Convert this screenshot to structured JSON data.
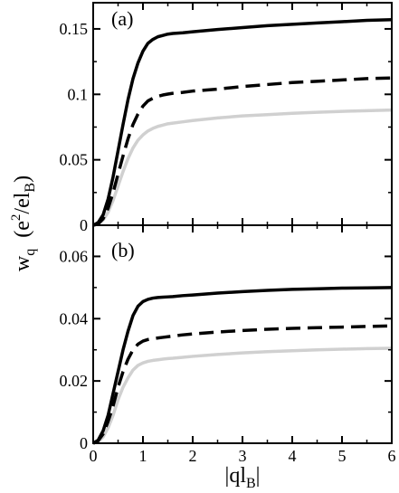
{
  "chart_data": [
    {
      "type": "line",
      "panel_label": "(a)",
      "xlim": [
        0,
        6
      ],
      "ylim": [
        0,
        0.17
      ],
      "xticks": [
        0,
        1,
        2,
        3,
        4,
        5,
        6
      ],
      "yticks": [
        0,
        0.05,
        0.1,
        0.15
      ],
      "ytick_labels": [
        "0",
        "0.05",
        "0.1",
        "0.15"
      ],
      "x": [
        0,
        0.1,
        0.2,
        0.3,
        0.4,
        0.5,
        0.6,
        0.7,
        0.8,
        0.9,
        1.0,
        1.1,
        1.2,
        1.3,
        1.4,
        1.5,
        1.6,
        1.8,
        2.0,
        2.5,
        3.0,
        3.5,
        4.0,
        4.5,
        5.0,
        5.5,
        6.0
      ],
      "series": [
        {
          "style": "solid-black",
          "color": "#000000",
          "values": [
            0,
            0.002,
            0.008,
            0.02,
            0.037,
            0.057,
            0.077,
            0.096,
            0.112,
            0.124,
            0.133,
            0.139,
            0.142,
            0.144,
            0.145,
            0.146,
            0.1465,
            0.147,
            0.1478,
            0.1495,
            0.151,
            0.1525,
            0.1535,
            0.1545,
            0.1555,
            0.1565,
            0.157
          ]
        },
        {
          "style": "dashed-black",
          "color": "#000000",
          "values": [
            0,
            0.001,
            0.005,
            0.013,
            0.025,
            0.039,
            0.053,
            0.066,
            0.077,
            0.085,
            0.091,
            0.095,
            0.097,
            0.0985,
            0.0995,
            0.1002,
            0.1008,
            0.1015,
            0.1025,
            0.104,
            0.106,
            0.1075,
            0.109,
            0.11,
            0.111,
            0.112,
            0.1125
          ]
        },
        {
          "style": "solid-gray",
          "color": "#d0d0d0",
          "values": [
            0,
            0.001,
            0.004,
            0.01,
            0.019,
            0.03,
            0.041,
            0.051,
            0.059,
            0.065,
            0.069,
            0.072,
            0.074,
            0.0755,
            0.0765,
            0.0775,
            0.078,
            0.079,
            0.08,
            0.082,
            0.0835,
            0.0845,
            0.0855,
            0.0863,
            0.087,
            0.0875,
            0.088
          ]
        }
      ]
    },
    {
      "type": "line",
      "panel_label": "(b)",
      "xlim": [
        0,
        6
      ],
      "ylim": [
        0,
        0.07
      ],
      "xticks": [
        0,
        1,
        2,
        3,
        4,
        5,
        6
      ],
      "yticks": [
        0,
        0.02,
        0.04,
        0.06
      ],
      "ytick_labels": [
        "0",
        "0.02",
        "0.04",
        "0.06"
      ],
      "x": [
        0,
        0.1,
        0.2,
        0.3,
        0.4,
        0.5,
        0.6,
        0.7,
        0.8,
        0.9,
        1.0,
        1.1,
        1.2,
        1.3,
        1.4,
        1.5,
        1.6,
        1.8,
        2.0,
        2.5,
        3.0,
        3.5,
        4.0,
        4.5,
        5.0,
        5.5,
        6.0
      ],
      "series": [
        {
          "style": "solid-black",
          "color": "#000000",
          "values": [
            0,
            0.001,
            0.004,
            0.009,
            0.016,
            0.023,
            0.03,
            0.036,
            0.041,
            0.044,
            0.0455,
            0.0462,
            0.0466,
            0.0468,
            0.0469,
            0.047,
            0.0471,
            0.0474,
            0.0476,
            0.0482,
            0.0487,
            0.0491,
            0.0494,
            0.0496,
            0.0498,
            0.0499,
            0.05
          ]
        },
        {
          "style": "dashed-black",
          "color": "#000000",
          "values": [
            0,
            0.0008,
            0.003,
            0.007,
            0.012,
            0.018,
            0.023,
            0.027,
            0.03,
            0.0318,
            0.0328,
            0.0333,
            0.0336,
            0.0338,
            0.034,
            0.0342,
            0.0344,
            0.0348,
            0.0351,
            0.0357,
            0.0362,
            0.0366,
            0.0369,
            0.0371,
            0.0373,
            0.0375,
            0.0377
          ]
        },
        {
          "style": "solid-gray",
          "color": "#d0d0d0",
          "values": [
            0,
            0.0005,
            0.002,
            0.005,
            0.009,
            0.014,
            0.018,
            0.021,
            0.0235,
            0.025,
            0.0258,
            0.0263,
            0.0266,
            0.0268,
            0.027,
            0.0272,
            0.0273,
            0.0276,
            0.0279,
            0.0285,
            0.029,
            0.0294,
            0.0297,
            0.03,
            0.0302,
            0.0304,
            0.0305
          ]
        }
      ]
    }
  ],
  "xlabel": {
    "base": "|ql",
    "sub": "B",
    "close": "|"
  },
  "ylabel": {
    "w": "w",
    "q": "q",
    "open": "(e",
    "sup": "2",
    "mid": "/el",
    "sub": "B",
    "close": ")"
  }
}
